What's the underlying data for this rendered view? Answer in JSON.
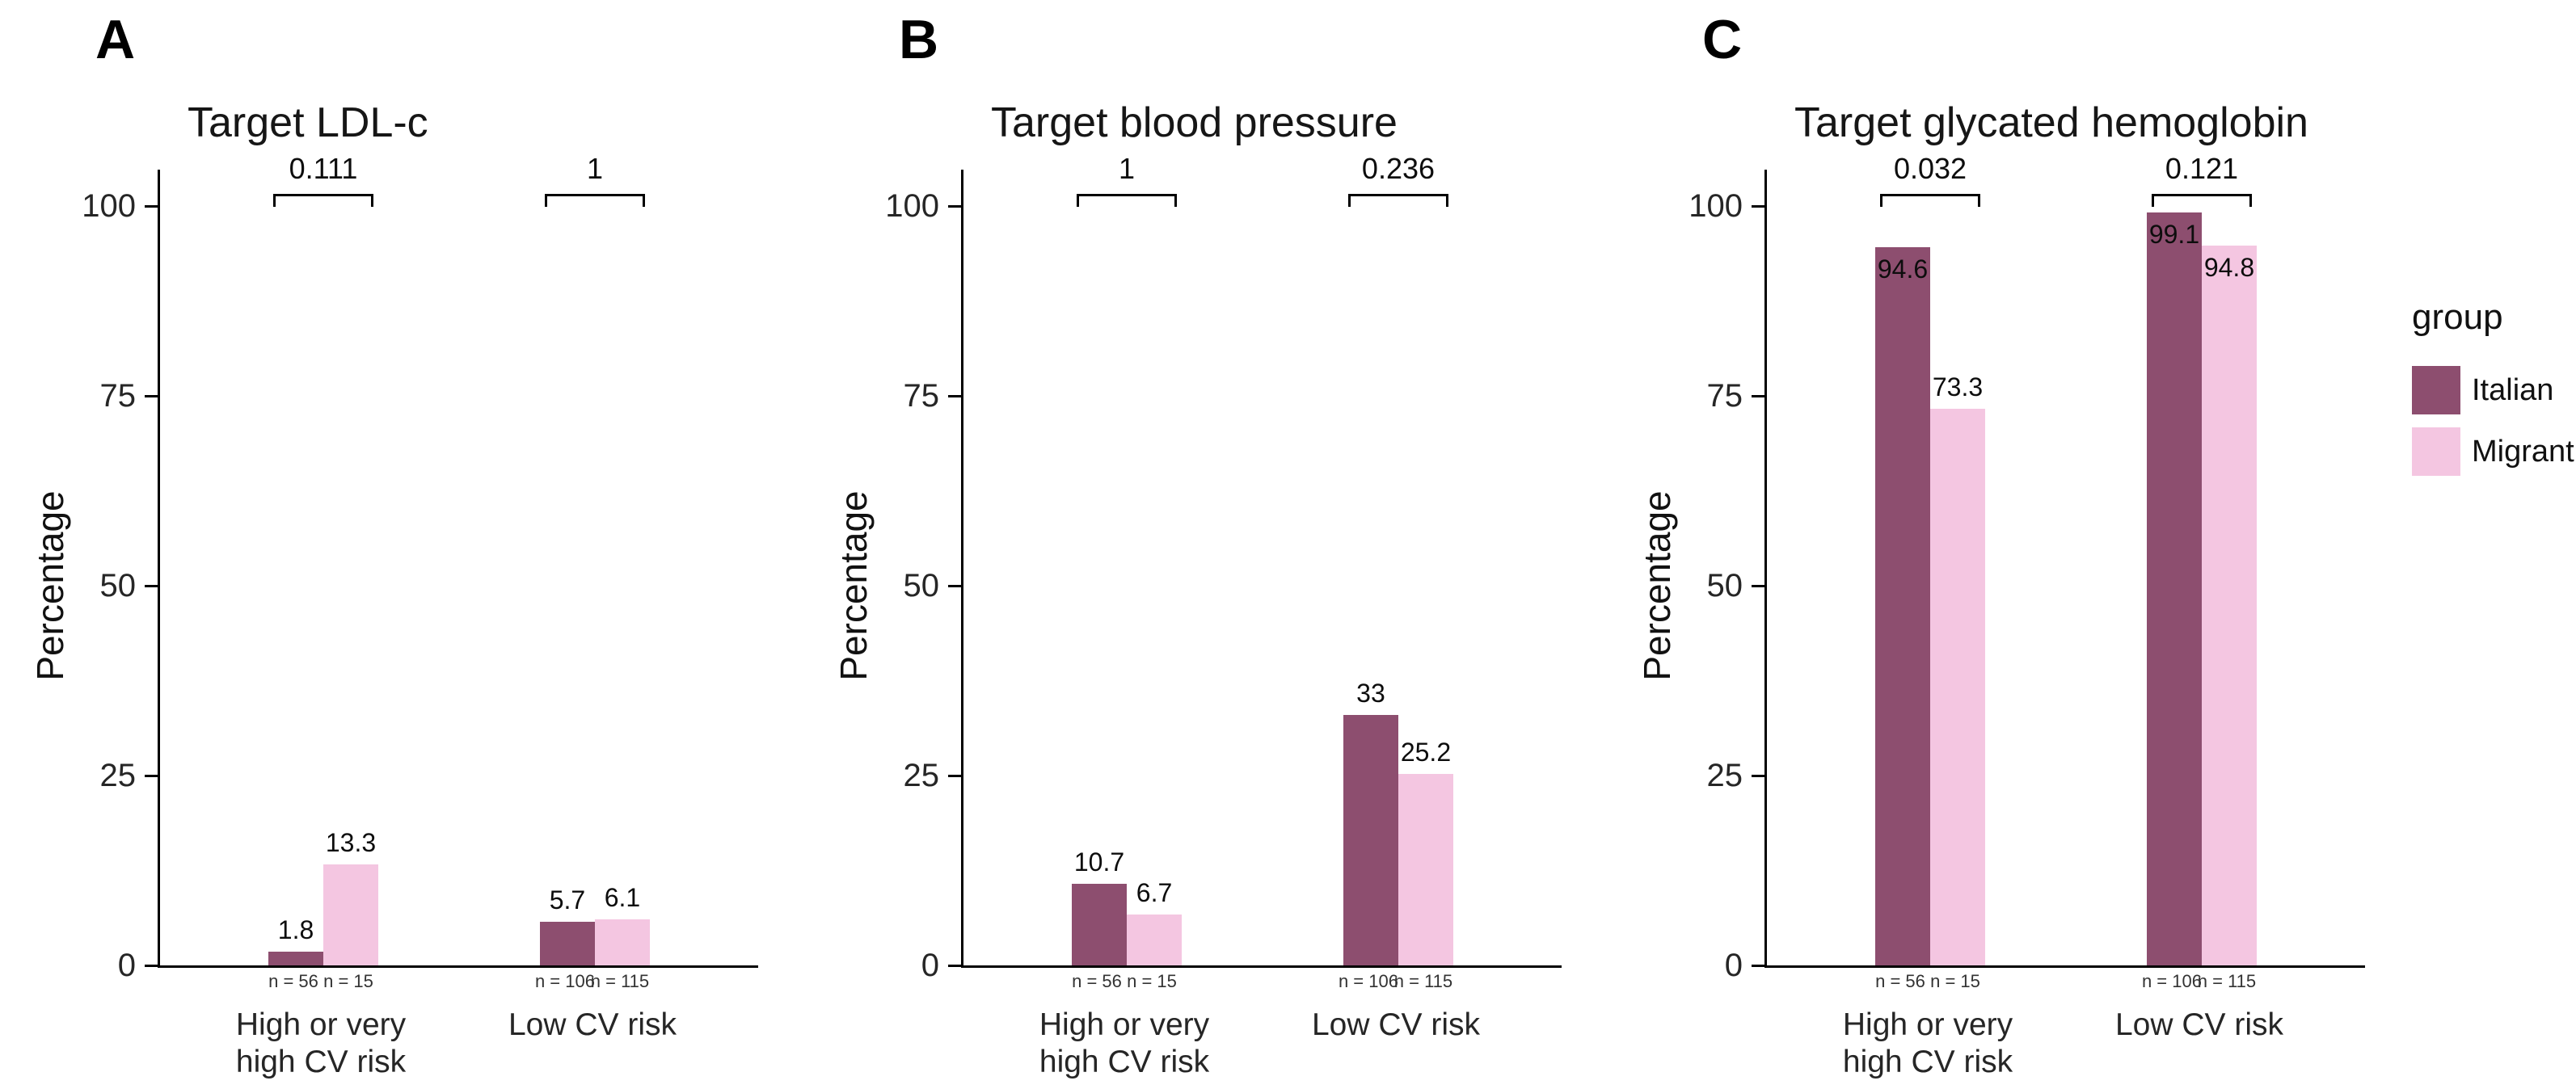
{
  "figure": {
    "ylabel": "Percentage",
    "yticks": [
      0,
      25,
      50,
      75,
      100
    ],
    "axis_color": "#000000",
    "background": "#ffffff",
    "legend_position": "right",
    "legend": {
      "title": "group",
      "entries": [
        {
          "label": "Italian",
          "color": "#8d4e6f"
        },
        {
          "label": "Migrant",
          "color": "#f4c6e1"
        }
      ]
    }
  },
  "chart_data": [
    {
      "type": "bar",
      "panel": "A",
      "title": "Target LDL-c",
      "xlabel": "",
      "ylabel": "Percentage",
      "ylim": [
        0,
        100
      ],
      "grid": false,
      "categories": [
        "High or very\nhigh CV risk",
        "Low CV risk"
      ],
      "series": [
        {
          "name": "Italian",
          "values": [
            1.8,
            5.7
          ]
        },
        {
          "name": "Migrant",
          "values": [
            13.3,
            6.1
          ]
        }
      ],
      "n_labels": [
        [
          "n = 56",
          "n = 15"
        ],
        [
          "n = 106",
          "n = 115"
        ]
      ],
      "p_values": [
        "0.111",
        "1"
      ]
    },
    {
      "type": "bar",
      "panel": "B",
      "title": "Target blood pressure",
      "xlabel": "",
      "ylabel": "Percentage",
      "ylim": [
        0,
        100
      ],
      "grid": false,
      "categories": [
        "High or very\nhigh CV risk",
        "Low CV risk"
      ],
      "series": [
        {
          "name": "Italian",
          "values": [
            10.7,
            33
          ]
        },
        {
          "name": "Migrant",
          "values": [
            6.7,
            25.2
          ]
        }
      ],
      "n_labels": [
        [
          "n = 56",
          "n = 15"
        ],
        [
          "n = 106",
          "n = 115"
        ]
      ],
      "p_values": [
        "1",
        "0.236"
      ]
    },
    {
      "type": "bar",
      "panel": "C",
      "title": "Target glycated hemoglobin",
      "xlabel": "",
      "ylabel": "Percentage",
      "ylim": [
        0,
        100
      ],
      "grid": false,
      "categories": [
        "High or very\nhigh CV risk",
        "Low CV risk"
      ],
      "series": [
        {
          "name": "Italian",
          "values": [
            94.6,
            99.1
          ]
        },
        {
          "name": "Migrant",
          "values": [
            73.3,
            94.8
          ]
        }
      ],
      "n_labels": [
        [
          "n = 56",
          "n = 15"
        ],
        [
          "n = 106",
          "n = 115"
        ]
      ],
      "p_values": [
        "0.032",
        "0.121"
      ]
    }
  ]
}
